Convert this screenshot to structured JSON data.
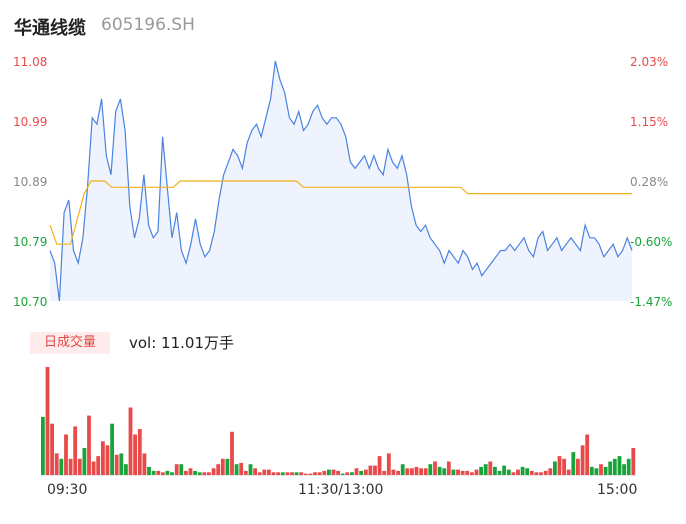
{
  "stock": {
    "name": "华通线缆",
    "code": "605196.SH"
  },
  "price_axis": {
    "labels": [
      "11.08",
      "10.99",
      "10.89",
      "10.79",
      "10.70"
    ]
  },
  "pct_axis": {
    "labels": [
      "2.03%",
      "1.15%",
      "0.28%",
      "-0.60%",
      "-1.47%"
    ]
  },
  "volume": {
    "badge": "日成交量",
    "text": "vol: 11.01万手"
  },
  "time_axis": {
    "labels": [
      "09:30",
      "11:30/13:00",
      "15:00"
    ]
  },
  "colors": {
    "up": "#e84a4a",
    "down": "#1aa33a",
    "line": "#4a82e0",
    "avg": "#f3b21b",
    "neutral": "#888888"
  },
  "chart_data": [
    {
      "type": "line",
      "title": "",
      "xlabel": "",
      "ylabel": "",
      "ylim": [
        10.7,
        11.08
      ],
      "x_ticks": [
        "09:30",
        "11:30/13:00",
        "15:00"
      ],
      "series": [
        {
          "values": [
            10.78,
            10.76,
            10.7,
            10.84,
            10.86,
            10.78,
            10.76,
            10.8,
            10.88,
            10.99,
            10.98,
            11.02,
            10.93,
            10.9,
            11.0,
            11.02,
            10.97,
            10.85,
            10.8,
            10.83,
            10.9,
            10.82,
            10.8,
            10.81,
            10.96,
            10.88,
            10.8,
            10.84,
            10.78,
            10.76,
            10.79,
            10.83,
            10.79,
            10.77,
            10.78,
            10.81,
            10.86,
            10.9,
            10.92,
            10.94,
            10.93,
            10.91,
            10.95,
            10.97,
            10.98,
            10.96,
            10.99,
            11.02,
            11.08,
            11.05,
            11.03,
            10.99,
            10.98,
            11.0,
            10.97,
            10.98,
            11.0,
            11.01,
            10.99,
            10.98,
            10.99,
            10.99,
            10.98,
            10.96,
            10.92,
            10.91,
            10.92,
            10.93,
            10.91,
            10.93,
            10.91,
            10.9,
            10.94,
            10.92,
            10.91,
            10.93,
            10.9,
            10.85,
            10.82,
            10.81,
            10.82,
            10.8,
            10.79,
            10.78,
            10.76,
            10.78,
            10.77,
            10.76,
            10.78,
            10.77,
            10.75,
            10.76,
            10.74,
            10.75,
            10.76,
            10.77,
            10.78,
            10.78,
            10.79,
            10.78,
            10.79,
            10.8,
            10.78,
            10.77,
            10.8,
            10.81,
            10.78,
            10.79,
            10.8,
            10.78,
            10.79,
            10.8,
            10.79,
            10.78,
            10.82,
            10.8,
            10.8,
            10.79,
            10.77,
            10.78,
            10.79,
            10.77,
            10.78,
            10.8,
            10.78
          ]
        },
        {
          "values": [
            10.82,
            10.79,
            10.79,
            10.79,
            10.83,
            10.87,
            10.89,
            10.89,
            10.89,
            10.88,
            10.88,
            10.88,
            10.88,
            10.88,
            10.88,
            10.88,
            10.88,
            10.88,
            10.88,
            10.89,
            10.89,
            10.89,
            10.89,
            10.89,
            10.89,
            10.89,
            10.89,
            10.89,
            10.89,
            10.89,
            10.89,
            10.89,
            10.89,
            10.89,
            10.89,
            10.89,
            10.89,
            10.88,
            10.88,
            10.88,
            10.88,
            10.88,
            10.88,
            10.88,
            10.88,
            10.88,
            10.88,
            10.88,
            10.88,
            10.88,
            10.88,
            10.88,
            10.88,
            10.88,
            10.88,
            10.88,
            10.88,
            10.88,
            10.88,
            10.88,
            10.88,
            10.87,
            10.87,
            10.87,
            10.87,
            10.87,
            10.87,
            10.87,
            10.87,
            10.87,
            10.87,
            10.87,
            10.87,
            10.87,
            10.87,
            10.87,
            10.87,
            10.87,
            10.87,
            10.87,
            10.87,
            10.87,
            10.87,
            10.87,
            10.87,
            10.87
          ]
        }
      ]
    },
    {
      "type": "bar",
      "title": "",
      "values": [
        43,
        80,
        38,
        16,
        12,
        30,
        12,
        36,
        12,
        20,
        44,
        10,
        14,
        25,
        22,
        38,
        15,
        16,
        8,
        50,
        30,
        34,
        16,
        6,
        3,
        3,
        2,
        3,
        2,
        8,
        8,
        3,
        5,
        3,
        2,
        2,
        2,
        5,
        8,
        12,
        12,
        32,
        8,
        9,
        3,
        8,
        5,
        2,
        4,
        4,
        2,
        2,
        2,
        2,
        2,
        2,
        2,
        1,
        1,
        2,
        2,
        3,
        4,
        4,
        3,
        1,
        2,
        2,
        5,
        3,
        4,
        7,
        7,
        14,
        3,
        16,
        4,
        3,
        8,
        5,
        5,
        6,
        5,
        5,
        8,
        10,
        6,
        5,
        10,
        4,
        4,
        3,
        3,
        2,
        4,
        6,
        8,
        10,
        6,
        3,
        7,
        4,
        2,
        4,
        6,
        5,
        3,
        2,
        2,
        3,
        5,
        10,
        14,
        12,
        4,
        17,
        12,
        22,
        30,
        6,
        5,
        8,
        6,
        10,
        12,
        14,
        8,
        12,
        20
      ]
    }
  ]
}
